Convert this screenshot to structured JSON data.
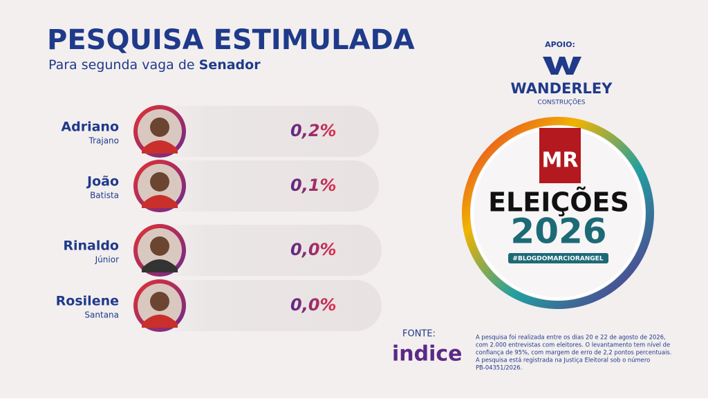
{
  "header": {
    "title": "PESQUISA ESTIMULADA",
    "subtitle": "Para segunda vaga de ",
    "subtitle_bold": "Senador"
  },
  "candidates": [
    {
      "first_name": "Adriano",
      "last_name": "Trajano",
      "percent": "0,2%"
    },
    {
      "first_name": "João",
      "last_name": "Batista",
      "percent": "0,1%"
    },
    {
      "first_name": "Rinaldo",
      "last_name": "Júnior",
      "percent": "0,0%"
    },
    {
      "first_name": "Rosilene",
      "last_name": "Santana",
      "percent": "0,0%"
    }
  ],
  "sponsor": {
    "label": "APOIO:",
    "name": "WANDERLEY",
    "subname": "CONSTRUÇÕES"
  },
  "logo": {
    "initials": "MR",
    "line1": "ELEIÇÕES",
    "line2": "2026",
    "hashtag": "#BLOGDOMARCIORANGEL"
  },
  "source": {
    "label": "FONTE:",
    "name": "indice"
  },
  "footnote": [
    "A pesquisa foi realizada entre os dias 20 e 22 de agosto de 2026,",
    "com 2.000 entrevistas com eleitores. O levantamento tem nível de",
    "confiança de 95%, com margem de erro de 2,2 pontos percentuais.",
    "A pesquisa está registrada na Justiça Eleitoral sob o número",
    "PB-04351/2026."
  ]
}
